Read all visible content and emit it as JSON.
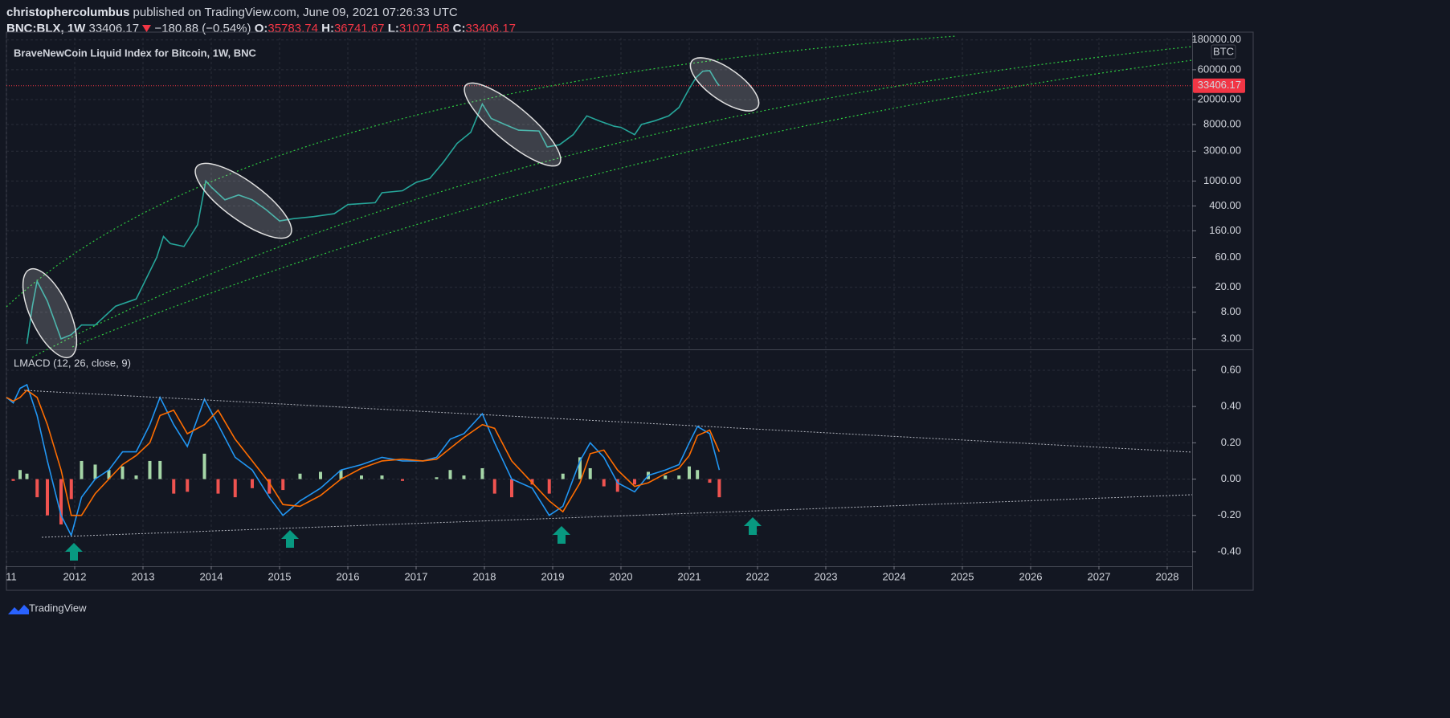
{
  "header": {
    "author": "christophercolumbus",
    "published": "published on TradingView.com, June 09, 2021 07:26:33 UTC",
    "symbol": "BNC:BLX, 1W",
    "last": "33406.17",
    "change": "−180.88 (−0.54%)",
    "o_label": "O:",
    "o": "35783.74",
    "h_label": "H:",
    "h": "36741.67",
    "l_label": "L:",
    "l": "31071.58",
    "c_label": "C:",
    "c": "33406.17"
  },
  "chart_data": [
    {
      "type": "line",
      "title": "BraveNewCoin Liquid Index for Bitcoin, 1W, BNC",
      "log_scale": true,
      "grid": true,
      "axis_label": "BTC",
      "last_price": 33406.17,
      "last_price_color": "#f23645",
      "xlim": [
        2011,
        2028.365
      ],
      "ylim": [
        2.1,
        195000
      ],
      "yticks": [
        {
          "value": 180000,
          "label": "180000.00"
        },
        {
          "value": 60000,
          "label": "60000.00"
        },
        {
          "value": 20000,
          "label": "20000.00"
        },
        {
          "value": 8000,
          "label": "8000.00"
        },
        {
          "value": 3000,
          "label": "3000.00"
        },
        {
          "value": 1000,
          "label": "1000.00"
        },
        {
          "value": 400,
          "label": "400.00"
        },
        {
          "value": 160,
          "label": "160.00"
        },
        {
          "value": 60,
          "label": "60.00"
        },
        {
          "value": 20,
          "label": "20.00"
        },
        {
          "value": 8,
          "label": "8.00"
        },
        {
          "value": 3,
          "label": "3.00"
        }
      ],
      "series": [
        {
          "color": "#26a69a",
          "x": [
            2011.3,
            2011.38,
            2011.45,
            2011.6,
            2011.8,
            2011.95,
            2012.1,
            2012.3,
            2012.6,
            2012.9,
            2013.2,
            2013.3,
            2013.4,
            2013.6,
            2013.8,
            2013.92,
            2014.0,
            2014.2,
            2014.4,
            2014.6,
            2014.8,
            2015.0,
            2015.2,
            2015.5,
            2015.8,
            2016.0,
            2016.4,
            2016.5,
            2016.8,
            2017.0,
            2017.2,
            2017.4,
            2017.6,
            2017.8,
            2017.97,
            2018.1,
            2018.3,
            2018.5,
            2018.8,
            2018.92,
            2019.1,
            2019.3,
            2019.5,
            2019.7,
            2019.9,
            2020.0,
            2020.2,
            2020.3,
            2020.5,
            2020.7,
            2020.85,
            2021.0,
            2021.1,
            2021.2,
            2021.3,
            2021.4,
            2021.44
          ],
          "values": [
            2.5,
            10,
            25,
            12,
            3,
            3.5,
            5,
            5,
            10,
            13,
            60,
            130,
            100,
            90,
            200,
            1000,
            800,
            500,
            600,
            500,
            350,
            230,
            250,
            270,
            300,
            420,
            450,
            650,
            700,
            950,
            1100,
            2000,
            4000,
            6000,
            17000,
            10000,
            8000,
            6500,
            6300,
            3500,
            3800,
            5500,
            11000,
            9000,
            7500,
            7200,
            5500,
            8000,
            9200,
            11000,
            15000,
            30000,
            45000,
            57000,
            58000,
            38000,
            33406.17
          ]
        }
      ]
    },
    {
      "type": "line",
      "title": "LMACD (12, 26, close, 9)",
      "grid": true,
      "xlim": [
        2011,
        2028.365
      ],
      "ylim": [
        -0.48,
        0.706
      ],
      "xticks": [
        {
          "value": 2011,
          "label": "11"
        },
        2012,
        2013,
        2014,
        2015,
        2016,
        2017,
        2018,
        2019,
        2020,
        2021,
        2022,
        2023,
        2024,
        2025,
        2026,
        2027,
        2028
      ],
      "yticks": [
        {
          "value": 0.6,
          "label": "0.60"
        },
        {
          "value": 0.4,
          "label": "0.40"
        },
        {
          "value": 0.2,
          "label": "0.20"
        },
        {
          "value": 0,
          "label": "0.00"
        },
        {
          "value": -0.2,
          "label": "-0.20"
        },
        {
          "value": -0.4,
          "label": "-0.40"
        }
      ],
      "x": [
        2011.0,
        2011.1,
        2011.2,
        2011.3,
        2011.45,
        2011.6,
        2011.8,
        2011.95,
        2012.1,
        2012.3,
        2012.5,
        2012.7,
        2012.9,
        2013.1,
        2013.25,
        2013.45,
        2013.65,
        2013.9,
        2014.1,
        2014.35,
        2014.6,
        2014.85,
        2015.05,
        2015.3,
        2015.6,
        2015.9,
        2016.2,
        2016.5,
        2016.8,
        2017.1,
        2017.3,
        2017.5,
        2017.7,
        2017.97,
        2018.15,
        2018.4,
        2018.7,
        2018.95,
        2019.15,
        2019.4,
        2019.55,
        2019.75,
        2019.95,
        2020.2,
        2020.4,
        2020.65,
        2020.85,
        2021.0,
        2021.12,
        2021.3,
        2021.44
      ],
      "series": [
        {
          "color": "#2196f3",
          "values": [
            0.45,
            0.42,
            0.5,
            0.52,
            0.35,
            0.1,
            -0.2,
            -0.31,
            -0.1,
            0.0,
            0.05,
            0.15,
            0.15,
            0.3,
            0.45,
            0.3,
            0.18,
            0.44,
            0.3,
            0.12,
            0.05,
            -0.1,
            -0.2,
            -0.12,
            -0.05,
            0.05,
            0.08,
            0.12,
            0.1,
            0.1,
            0.12,
            0.22,
            0.25,
            0.36,
            0.2,
            0.0,
            -0.05,
            -0.2,
            -0.15,
            0.1,
            0.2,
            0.12,
            -0.02,
            -0.07,
            0.02,
            0.05,
            0.08,
            0.2,
            0.29,
            0.25,
            0.05
          ]
        },
        {
          "color": "#ff6d00",
          "values": [
            0.45,
            0.43,
            0.45,
            0.49,
            0.45,
            0.3,
            0.05,
            -0.2,
            -0.2,
            -0.08,
            0.0,
            0.08,
            0.13,
            0.2,
            0.35,
            0.38,
            0.25,
            0.3,
            0.38,
            0.22,
            0.1,
            -0.02,
            -0.14,
            -0.15,
            -0.09,
            0.0,
            0.06,
            0.1,
            0.11,
            0.1,
            0.11,
            0.17,
            0.23,
            0.3,
            0.28,
            0.1,
            -0.02,
            -0.12,
            -0.18,
            -0.02,
            0.14,
            0.16,
            0.05,
            -0.04,
            -0.02,
            0.03,
            0.06,
            0.13,
            0.24,
            0.27,
            0.15
          ]
        }
      ],
      "histogram": {
        "positive_color": "#a5d6a7",
        "negative_color": "#ef5350",
        "values": [
          0,
          -0.01,
          0.05,
          0.03,
          -0.1,
          -0.2,
          -0.25,
          -0.11,
          0.1,
          0.08,
          0.05,
          0.07,
          0.02,
          0.1,
          0.1,
          -0.08,
          -0.07,
          0.14,
          -0.08,
          -0.1,
          -0.05,
          -0.08,
          -0.06,
          0.03,
          0.04,
          0.05,
          0.02,
          0.02,
          -0.01,
          0,
          0.01,
          0.05,
          0.02,
          0.06,
          -0.08,
          -0.1,
          -0.03,
          -0.08,
          0.03,
          0.12,
          0.06,
          -0.04,
          -0.07,
          -0.03,
          0.04,
          0.02,
          0.02,
          0.07,
          0.05,
          -0.02,
          -0.1
        ]
      }
    }
  ],
  "footer": {
    "brand": "TradingView"
  }
}
